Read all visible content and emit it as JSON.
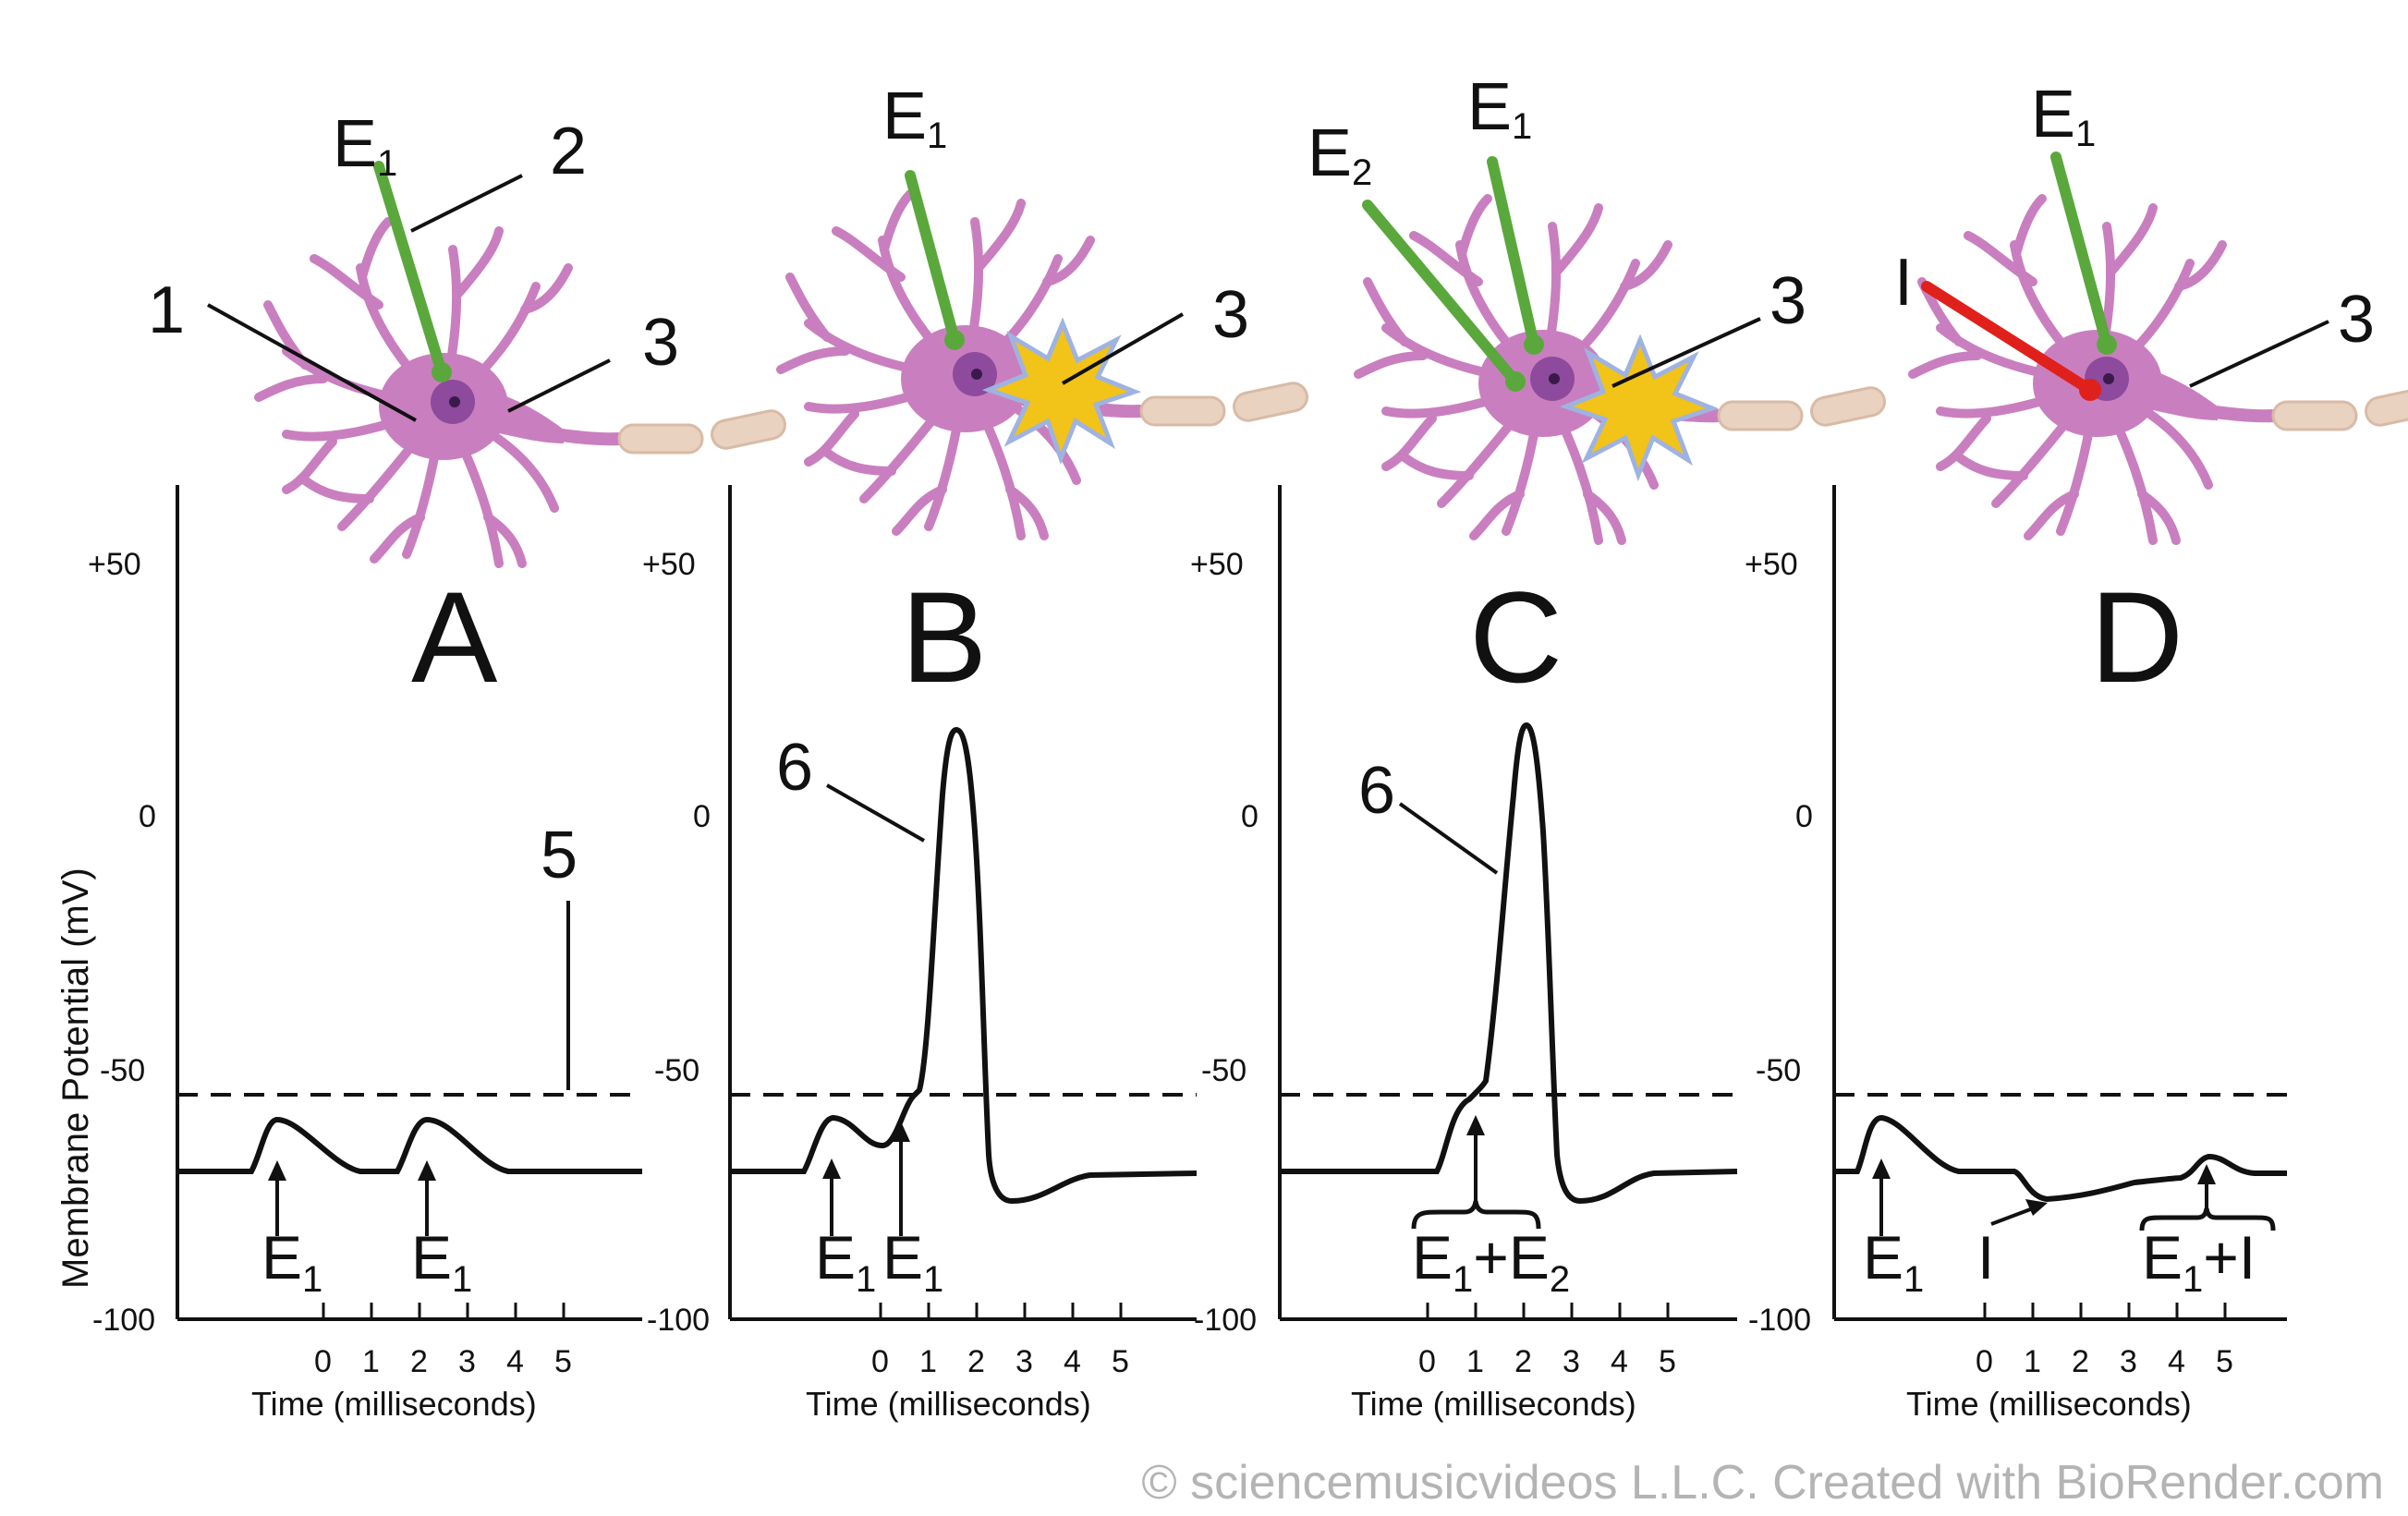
{
  "figure": {
    "y_axis_label": "Membrane Potential (mV)",
    "x_axis_label": "Time (milliseconds)",
    "y_ticks": [
      "+50",
      "0",
      "-50",
      "-100"
    ],
    "x_ticks": [
      "0",
      "1",
      "2",
      "3",
      "4",
      "5"
    ],
    "credit": "© sciencemusicvideos L.L.C. Created with BioRender.com",
    "colors": {
      "neuron": "#c97fbf",
      "nucleus": "#8e4a9c",
      "excitatory_electrode": "#5aa83c",
      "inhibitory_electrode": "#e0201b",
      "action_potential_burst": "#f2c318",
      "axon_myelin": "#ead2c0"
    }
  },
  "panels": [
    {
      "letter": "A",
      "electrodes": [
        {
          "main": "E",
          "sub": "1"
        }
      ],
      "callouts": [
        "1",
        "2",
        "3",
        "5"
      ],
      "stimuli": [
        {
          "main": "E",
          "sub": "1"
        },
        {
          "main": "E",
          "sub": "1"
        }
      ]
    },
    {
      "letter": "B",
      "electrodes": [
        {
          "main": "E",
          "sub": "1"
        }
      ],
      "callouts": [
        "3",
        "6"
      ],
      "stimuli": [
        {
          "main": "E",
          "sub": "1"
        },
        {
          "main": "E",
          "sub": "1"
        }
      ]
    },
    {
      "letter": "C",
      "electrodes": [
        {
          "main": "E",
          "sub": "1"
        },
        {
          "main": "E",
          "sub": "2"
        }
      ],
      "callouts": [
        "3",
        "6"
      ],
      "stimuli": [
        {
          "main1": "E",
          "sub1": "1",
          "op": "+",
          "main2": "E",
          "sub2": "2"
        }
      ]
    },
    {
      "letter": "D",
      "electrodes": [
        {
          "main": "E",
          "sub": "1"
        },
        {
          "main": "I",
          "sub": ""
        }
      ],
      "callouts": [
        "3"
      ],
      "stimuli": [
        {
          "main": "E",
          "sub": "1"
        },
        {
          "main": "I",
          "sub": ""
        },
        {
          "main1": "E",
          "sub1": "1",
          "op": "+",
          "main2": "I",
          "sub2": ""
        }
      ]
    }
  ]
}
